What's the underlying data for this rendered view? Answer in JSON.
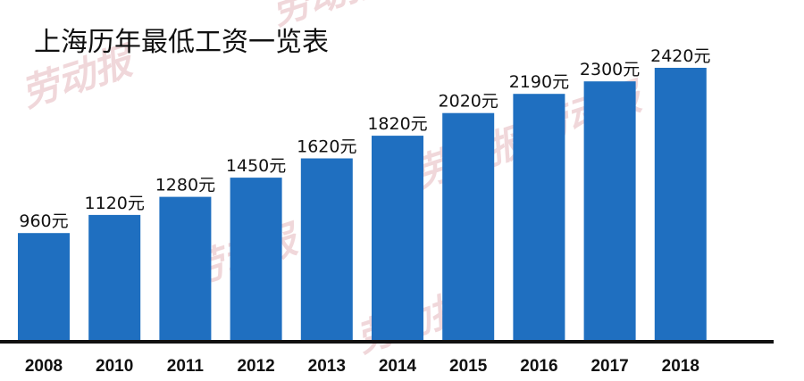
{
  "watermark": {
    "text": "劳动报"
  },
  "chart_data": {
    "type": "bar",
    "title": "上海历年最低工资一览表",
    "categories": [
      "2008",
      "2010",
      "2011",
      "2012",
      "2013",
      "2014",
      "2015",
      "2016",
      "2017",
      "2018"
    ],
    "values": [
      960,
      1120,
      1280,
      1450,
      1620,
      1820,
      2020,
      2190,
      2300,
      2420
    ],
    "value_labels": [
      "960元",
      "1120元",
      "1280元",
      "1450元",
      "1620元",
      "1820元",
      "2020元",
      "2190元",
      "2300元",
      "2420元"
    ],
    "ylim": [
      0,
      2420
    ],
    "grid": false,
    "legend": "none",
    "bar_color": "#1f6fc0",
    "axis_color": "#111111"
  }
}
